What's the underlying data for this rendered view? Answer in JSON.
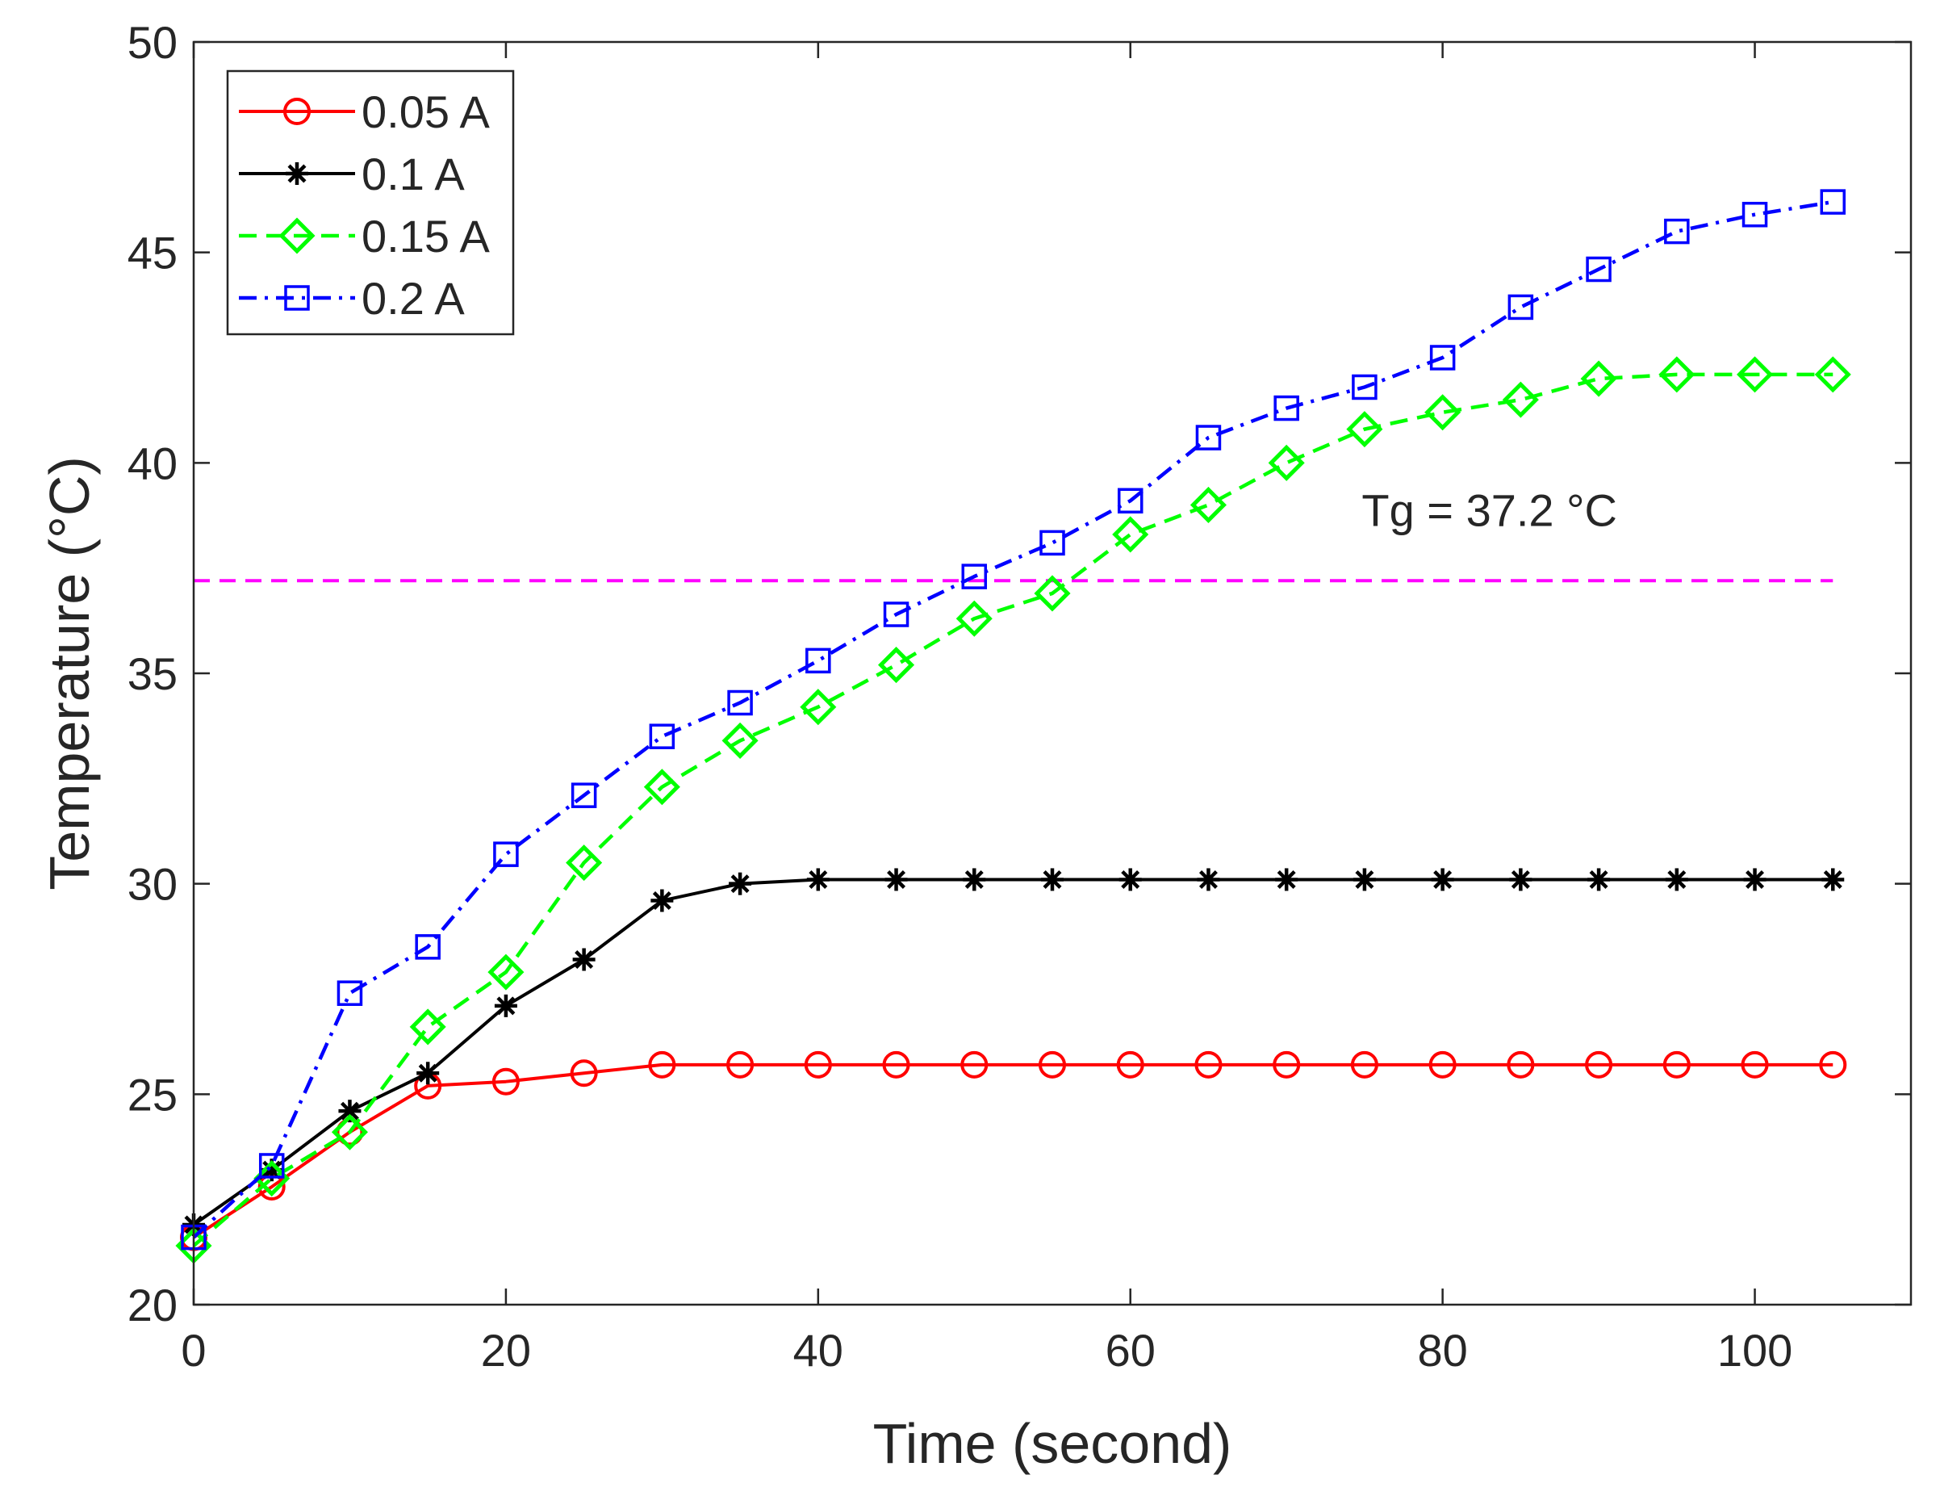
{
  "chart_data": {
    "type": "line",
    "title": "",
    "xlabel": "Time (second)",
    "ylabel": "Temperature (°C)",
    "xlim": [
      0,
      110
    ],
    "ylim": [
      20,
      50
    ],
    "xticks": [
      0,
      20,
      40,
      60,
      80,
      100
    ],
    "yticks": [
      20,
      25,
      30,
      35,
      40,
      45,
      50
    ],
    "grid": false,
    "legend_position": "top-left",
    "x": [
      0,
      5,
      10,
      15,
      20,
      25,
      30,
      35,
      40,
      45,
      50,
      55,
      60,
      65,
      70,
      75,
      80,
      85,
      90,
      95,
      100,
      105
    ],
    "series": [
      {
        "name": "0.05 A",
        "color": "#ff0000",
        "line_style": "solid",
        "marker": "circle",
        "values": [
          21.6,
          22.8,
          24.1,
          25.2,
          25.3,
          25.5,
          25.7,
          25.7,
          25.7,
          25.7,
          25.7,
          25.7,
          25.7,
          25.7,
          25.7,
          25.7,
          25.7,
          25.7,
          25.7,
          25.7,
          25.7,
          25.7
        ]
      },
      {
        "name": "0.1 A",
        "color": "#000000",
        "line_style": "solid",
        "marker": "asterisk",
        "values": [
          21.9,
          23.2,
          24.6,
          25.5,
          27.1,
          28.2,
          29.6,
          30.0,
          30.1,
          30.1,
          30.1,
          30.1,
          30.1,
          30.1,
          30.1,
          30.1,
          30.1,
          30.1,
          30.1,
          30.1,
          30.1,
          30.1
        ]
      },
      {
        "name": "0.15 A",
        "color": "#00ff00",
        "line_style": "dashed",
        "marker": "diamond",
        "values": [
          21.4,
          23.0,
          24.1,
          26.6,
          27.9,
          30.5,
          32.3,
          33.4,
          34.2,
          35.2,
          36.3,
          36.9,
          38.3,
          39.0,
          40.0,
          40.8,
          41.2,
          41.5,
          42.0,
          42.1,
          42.1,
          42.1
        ]
      },
      {
        "name": "0.2 A",
        "color": "#0000ff",
        "line_style": "dashdot",
        "marker": "square",
        "values": [
          21.6,
          23.3,
          27.4,
          28.5,
          30.7,
          32.1,
          33.5,
          34.3,
          35.3,
          36.4,
          37.3,
          38.1,
          39.1,
          40.6,
          41.3,
          41.8,
          42.5,
          43.7,
          44.6,
          45.5,
          45.9,
          46.2
        ]
      }
    ],
    "reference_line": {
      "value": 37.2,
      "color": "#ff00ff",
      "line_style": "dashed",
      "label": "Tg = 37.2 °C"
    }
  }
}
